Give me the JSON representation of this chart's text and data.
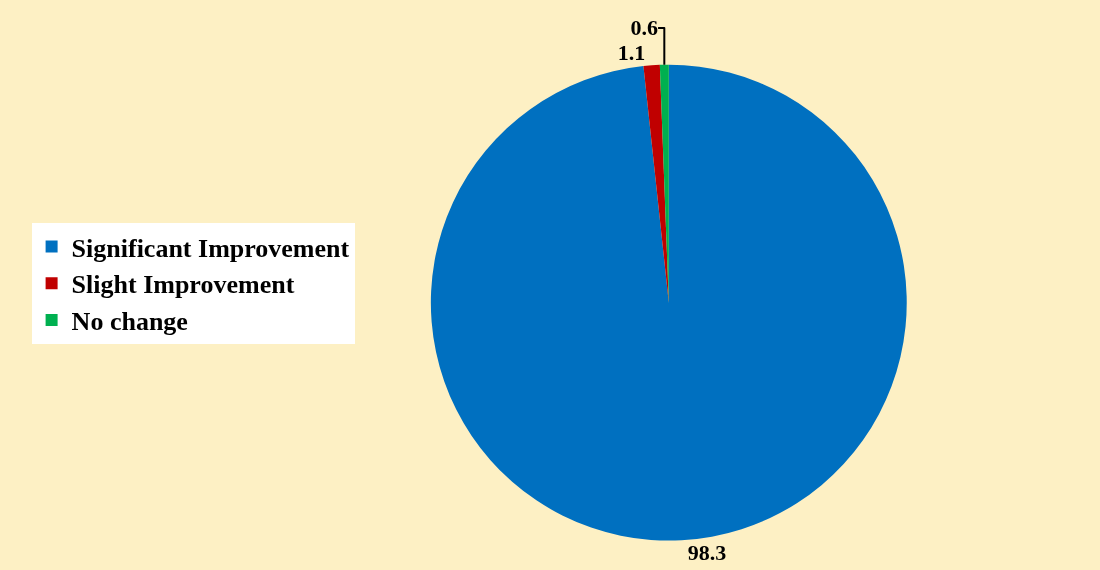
{
  "chart_data": {
    "type": "pie",
    "categories": [
      "Significant Improvement",
      "Slight Improvement",
      "No change"
    ],
    "values": [
      98.3,
      1.1,
      0.6
    ],
    "colors": [
      "#0070c0",
      "#c00000",
      "#00b050"
    ],
    "data_labels": true,
    "legend": "left"
  }
}
